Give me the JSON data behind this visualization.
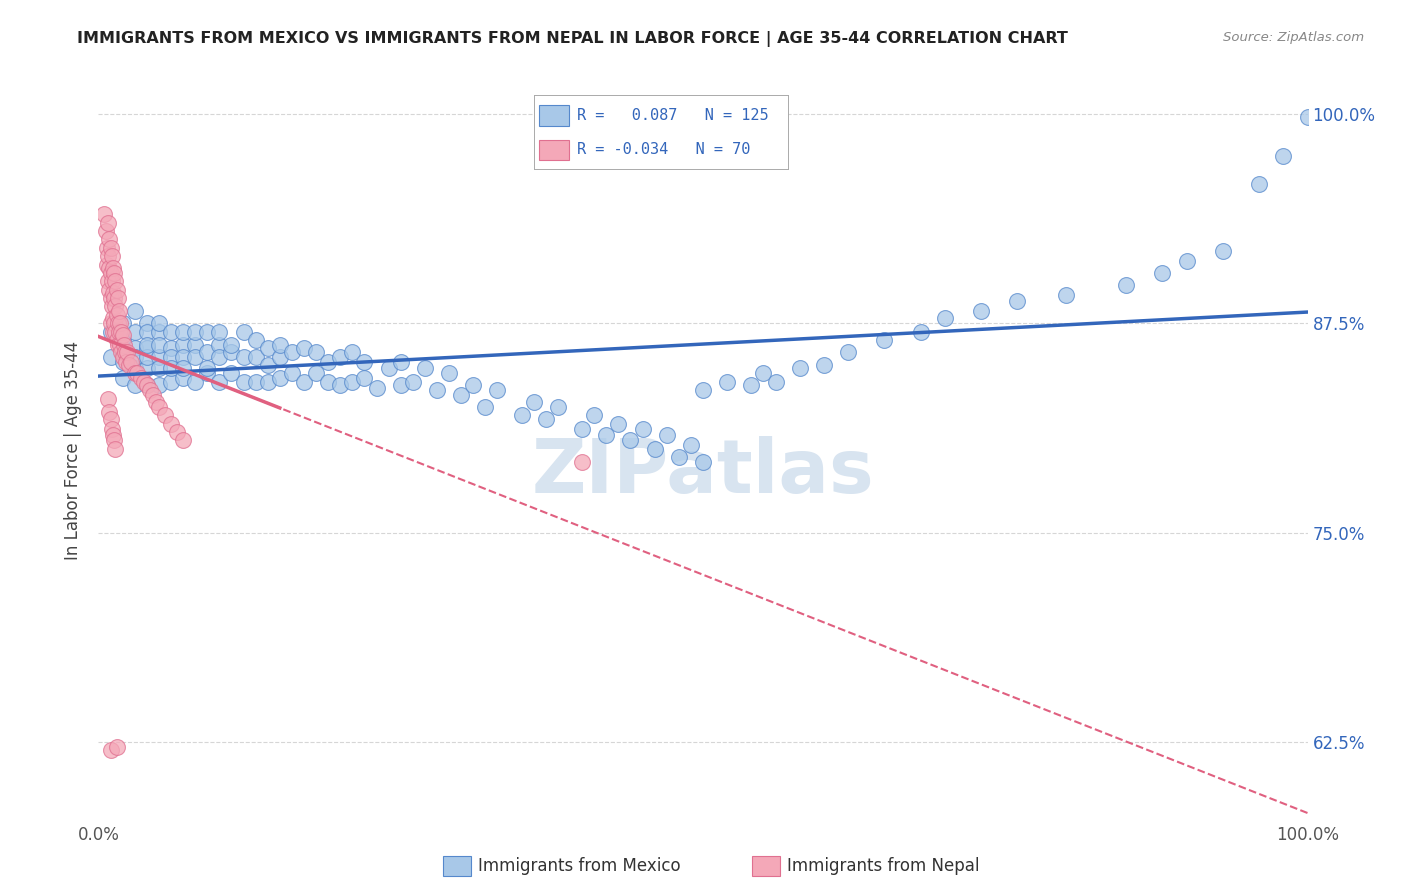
{
  "title": "IMMIGRANTS FROM MEXICO VS IMMIGRANTS FROM NEPAL IN LABOR FORCE | AGE 35-44 CORRELATION CHART",
  "source": "Source: ZipAtlas.com",
  "ylabel": "In Labor Force | Age 35-44",
  "legend_blue_r": "0.087",
  "legend_blue_n": "125",
  "legend_pink_r": "-0.034",
  "legend_pink_n": "70",
  "legend_blue_label": "Immigrants from Mexico",
  "legend_pink_label": "Immigrants from Nepal",
  "blue_color": "#a8c8e8",
  "pink_color": "#f4a8b8",
  "blue_edge_color": "#5588cc",
  "pink_edge_color": "#e07090",
  "blue_line_color": "#3366bb",
  "pink_line_color": "#e06080",
  "pink_line_dash": [
    6,
    4
  ],
  "title_color": "#222222",
  "watermark_text": "ZIPatlas",
  "watermark_color": "#d8e4f0",
  "blue_scatter_x": [
    0.01,
    0.01,
    0.02,
    0.02,
    0.02,
    0.02,
    0.02,
    0.03,
    0.03,
    0.03,
    0.03,
    0.03,
    0.03,
    0.04,
    0.04,
    0.04,
    0.04,
    0.04,
    0.04,
    0.04,
    0.05,
    0.05,
    0.05,
    0.05,
    0.05,
    0.05,
    0.06,
    0.06,
    0.06,
    0.06,
    0.06,
    0.07,
    0.07,
    0.07,
    0.07,
    0.07,
    0.08,
    0.08,
    0.08,
    0.08,
    0.09,
    0.09,
    0.09,
    0.09,
    0.1,
    0.1,
    0.1,
    0.1,
    0.11,
    0.11,
    0.11,
    0.12,
    0.12,
    0.12,
    0.13,
    0.13,
    0.13,
    0.14,
    0.14,
    0.14,
    0.15,
    0.15,
    0.15,
    0.16,
    0.16,
    0.17,
    0.17,
    0.18,
    0.18,
    0.19,
    0.19,
    0.2,
    0.2,
    0.21,
    0.21,
    0.22,
    0.22,
    0.23,
    0.24,
    0.25,
    0.25,
    0.26,
    0.27,
    0.28,
    0.29,
    0.3,
    0.31,
    0.32,
    0.33,
    0.35,
    0.36,
    0.37,
    0.38,
    0.4,
    0.41,
    0.42,
    0.43,
    0.44,
    0.45,
    0.46,
    0.47,
    0.48,
    0.49,
    0.5,
    0.5,
    0.52,
    0.54,
    0.55,
    0.56,
    0.58,
    0.6,
    0.62,
    0.65,
    0.68,
    0.7,
    0.73,
    0.76,
    0.8,
    0.85,
    0.88,
    0.9,
    0.93,
    0.96,
    0.98,
    1.0
  ],
  "blue_scatter_y": [
    0.855,
    0.87,
    0.852,
    0.865,
    0.875,
    0.858,
    0.842,
    0.86,
    0.848,
    0.87,
    0.882,
    0.855,
    0.838,
    0.875,
    0.86,
    0.848,
    0.87,
    0.855,
    0.838,
    0.862,
    0.87,
    0.855,
    0.848,
    0.862,
    0.838,
    0.875,
    0.86,
    0.855,
    0.84,
    0.87,
    0.848,
    0.862,
    0.855,
    0.842,
    0.87,
    0.848,
    0.862,
    0.855,
    0.84,
    0.87,
    0.858,
    0.845,
    0.87,
    0.848,
    0.862,
    0.855,
    0.84,
    0.87,
    0.858,
    0.845,
    0.862,
    0.855,
    0.84,
    0.87,
    0.855,
    0.84,
    0.865,
    0.85,
    0.86,
    0.84,
    0.855,
    0.842,
    0.862,
    0.845,
    0.858,
    0.84,
    0.86,
    0.845,
    0.858,
    0.84,
    0.852,
    0.838,
    0.855,
    0.84,
    0.858,
    0.842,
    0.852,
    0.836,
    0.848,
    0.838,
    0.852,
    0.84,
    0.848,
    0.835,
    0.845,
    0.832,
    0.838,
    0.825,
    0.835,
    0.82,
    0.828,
    0.818,
    0.825,
    0.812,
    0.82,
    0.808,
    0.815,
    0.805,
    0.812,
    0.8,
    0.808,
    0.795,
    0.802,
    0.792,
    0.835,
    0.84,
    0.838,
    0.845,
    0.84,
    0.848,
    0.85,
    0.858,
    0.865,
    0.87,
    0.878,
    0.882,
    0.888,
    0.892,
    0.898,
    0.905,
    0.912,
    0.918,
    0.958,
    0.975,
    0.998
  ],
  "pink_scatter_x": [
    0.005,
    0.006,
    0.007,
    0.007,
    0.008,
    0.008,
    0.008,
    0.009,
    0.009,
    0.009,
    0.01,
    0.01,
    0.01,
    0.01,
    0.011,
    0.011,
    0.011,
    0.012,
    0.012,
    0.012,
    0.012,
    0.013,
    0.013,
    0.013,
    0.014,
    0.014,
    0.014,
    0.015,
    0.015,
    0.015,
    0.016,
    0.016,
    0.016,
    0.017,
    0.017,
    0.018,
    0.018,
    0.019,
    0.019,
    0.02,
    0.02,
    0.021,
    0.022,
    0.023,
    0.024,
    0.025,
    0.027,
    0.03,
    0.032,
    0.035,
    0.038,
    0.04,
    0.043,
    0.045,
    0.048,
    0.05,
    0.055,
    0.06,
    0.065,
    0.07,
    0.008,
    0.009,
    0.01,
    0.011,
    0.012,
    0.013,
    0.014,
    0.4,
    0.01,
    0.015
  ],
  "pink_scatter_y": [
    0.94,
    0.93,
    0.92,
    0.91,
    0.935,
    0.915,
    0.9,
    0.925,
    0.908,
    0.895,
    0.92,
    0.905,
    0.89,
    0.875,
    0.915,
    0.9,
    0.885,
    0.908,
    0.893,
    0.878,
    0.87,
    0.905,
    0.89,
    0.875,
    0.9,
    0.885,
    0.87,
    0.895,
    0.88,
    0.865,
    0.89,
    0.875,
    0.862,
    0.882,
    0.87,
    0.875,
    0.862,
    0.87,
    0.858,
    0.868,
    0.855,
    0.862,
    0.858,
    0.852,
    0.858,
    0.85,
    0.852,
    0.845,
    0.845,
    0.842,
    0.84,
    0.838,
    0.835,
    0.832,
    0.828,
    0.825,
    0.82,
    0.815,
    0.81,
    0.805,
    0.83,
    0.822,
    0.818,
    0.812,
    0.808,
    0.805,
    0.8,
    0.792,
    0.62,
    0.622
  ],
  "xlim": [
    0.0,
    1.0
  ],
  "ylim": [
    0.578,
    1.02
  ],
  "ytick_positions": [
    0.625,
    0.75,
    0.875,
    1.0
  ],
  "ytick_labels": [
    "62.5%",
    "75.0%",
    "87.5%",
    "100.0%"
  ],
  "xtick_positions": [
    0.0,
    1.0
  ],
  "xtick_labels": [
    "0.0%",
    "100.0%"
  ]
}
